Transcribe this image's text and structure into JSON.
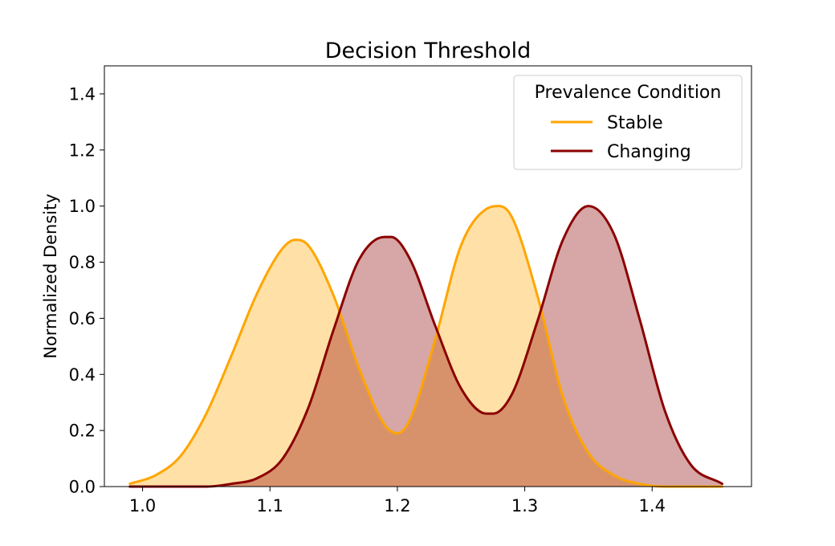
{
  "chart_data": {
    "type": "area",
    "title": "Decision Threshold",
    "xlabel": "",
    "ylabel": "Normalized Density",
    "xlim": [
      0.97,
      1.478
    ],
    "ylim": [
      0.0,
      1.5
    ],
    "xticks": [
      1.0,
      1.1,
      1.2,
      1.3,
      1.4
    ],
    "xtick_labels": [
      "1.0",
      "1.1",
      "1.2",
      "1.3",
      "1.4"
    ],
    "yticks": [
      0.0,
      0.2,
      0.4,
      0.6,
      0.8,
      1.0,
      1.2,
      1.4
    ],
    "ytick_labels": [
      "0.0",
      "0.2",
      "0.4",
      "0.6",
      "0.8",
      "1.0",
      "1.2",
      "1.4"
    ],
    "grid": false,
    "legend": {
      "title": "Prevalence Condition",
      "position": "upper right"
    },
    "series": [
      {
        "name": "Stable",
        "color": "#FFA500",
        "fill_color": "#FFA500",
        "fill_opacity": 0.35,
        "x": [
          0.99,
          1.01,
          1.03,
          1.05,
          1.07,
          1.09,
          1.11,
          1.12,
          1.13,
          1.15,
          1.17,
          1.19,
          1.2,
          1.21,
          1.23,
          1.25,
          1.27,
          1.28,
          1.29,
          1.31,
          1.33,
          1.35,
          1.37,
          1.39,
          1.41,
          1.43,
          1.455
        ],
        "values": [
          0.01,
          0.04,
          0.11,
          0.26,
          0.47,
          0.69,
          0.85,
          0.88,
          0.86,
          0.68,
          0.42,
          0.22,
          0.19,
          0.24,
          0.53,
          0.86,
          0.99,
          1.0,
          0.96,
          0.68,
          0.32,
          0.12,
          0.04,
          0.01,
          0.0,
          0.0,
          0.0
        ]
      },
      {
        "name": "Changing",
        "color": "#8B0000",
        "fill_color": "#8B0000",
        "fill_opacity": 0.35,
        "x": [
          0.99,
          1.01,
          1.03,
          1.05,
          1.07,
          1.09,
          1.11,
          1.13,
          1.15,
          1.17,
          1.19,
          1.195,
          1.21,
          1.23,
          1.25,
          1.27,
          1.275,
          1.29,
          1.31,
          1.33,
          1.35,
          1.37,
          1.39,
          1.41,
          1.43,
          1.455
        ],
        "values": [
          0.0,
          0.0,
          0.0,
          0.0,
          0.01,
          0.03,
          0.1,
          0.28,
          0.56,
          0.81,
          0.89,
          0.89,
          0.81,
          0.57,
          0.35,
          0.26,
          0.26,
          0.33,
          0.59,
          0.88,
          1.0,
          0.9,
          0.6,
          0.27,
          0.08,
          0.01
        ]
      }
    ]
  }
}
